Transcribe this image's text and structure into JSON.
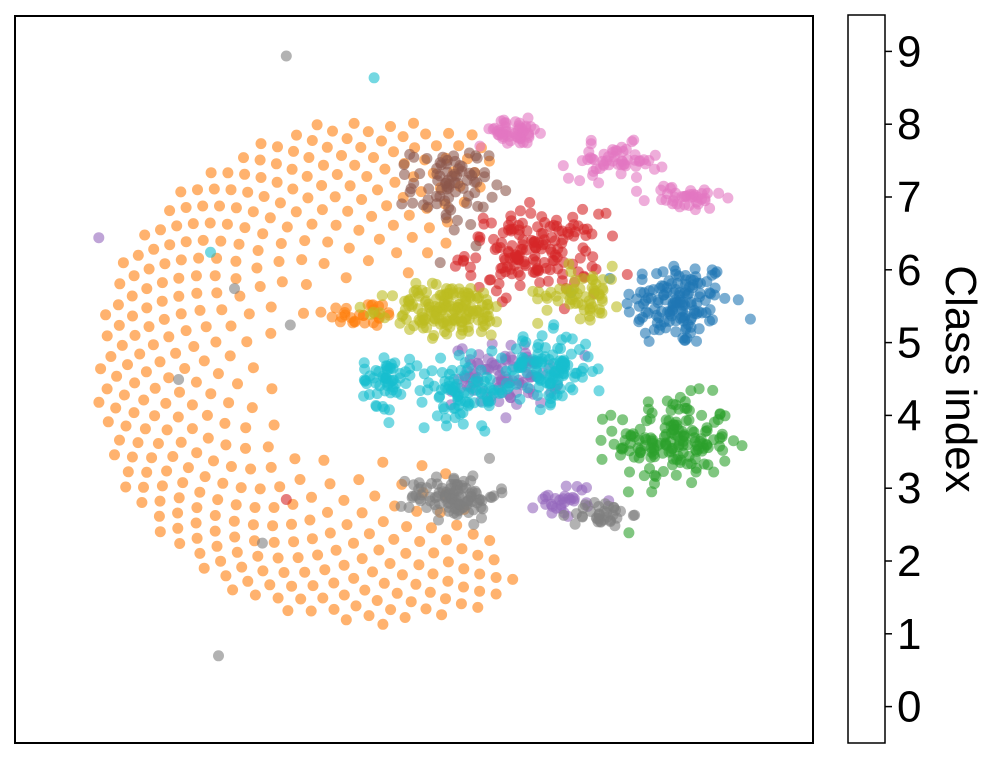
{
  "chart_data": {
    "type": "scatter",
    "title": "",
    "xlabel": "",
    "ylabel": "",
    "axis_ticks_visible": false,
    "grid": false,
    "marker_alpha": 0.6,
    "colorbar": {
      "label": "Class index",
      "ticks": [
        "0",
        "1",
        "2",
        "3",
        "4",
        "5",
        "6",
        "7",
        "8",
        "9"
      ],
      "colors": [
        "#1f77b4",
        "#ff7f0e",
        "#2ca02c",
        "#d62728",
        "#9467bd",
        "#8c564b",
        "#e377c2",
        "#7f7f7f",
        "#bcbd22",
        "#17becf"
      ]
    },
    "xlim": [
      -100,
      100
    ],
    "ylim": [
      -100,
      100
    ],
    "ring": {
      "class": 1,
      "center": [
        -10,
        2
      ],
      "radius_range": [
        22,
        92
      ],
      "angle_range_deg": [
        62,
        303
      ],
      "n_rings": 9,
      "n_points": 380,
      "outliers": [
        {
          "x": -32,
          "y": 89,
          "class": 7
        },
        {
          "x": -51,
          "y": 35,
          "class": 9
        },
        {
          "x": -79,
          "y": 39,
          "class": 4
        },
        {
          "x": -45,
          "y": 25,
          "class": 7
        },
        {
          "x": -31,
          "y": 15,
          "class": 7
        },
        {
          "x": -59,
          "y": 0,
          "class": 7
        },
        {
          "x": -32,
          "y": -33,
          "class": 3
        },
        {
          "x": -38,
          "y": -45,
          "class": 7
        },
        {
          "x": -49,
          "y": -76,
          "class": 7
        },
        {
          "x": -10,
          "y": 83,
          "class": 9
        }
      ]
    },
    "clusters": [
      {
        "class": 0,
        "center": [
          66,
          21
        ],
        "spread": [
          11,
          10
        ],
        "n": 140
      },
      {
        "class": 1,
        "center": [
          -13,
          18
        ],
        "spread": [
          8,
          3
        ],
        "n": 30
      },
      {
        "class": 2,
        "center": [
          65,
          -17
        ],
        "spread": [
          12,
          10
        ],
        "n": 160
      },
      {
        "class": 3,
        "center": [
          30,
          35
        ],
        "spread": [
          14,
          9
        ],
        "n": 160
      },
      {
        "class": 4,
        "center": [
          23,
          1
        ],
        "spread": [
          11,
          7
        ],
        "n": 95
      },
      {
        "class": 4,
        "center": [
          38,
          -33
        ],
        "spread": [
          6,
          4
        ],
        "n": 30
      },
      {
        "class": 5,
        "center": [
          9,
          53
        ],
        "spread": [
          8,
          9
        ],
        "n": 80
      },
      {
        "class": 6,
        "center": [
          25,
          68
        ],
        "spread": [
          8,
          3
        ],
        "n": 50
      },
      {
        "class": 6,
        "center": [
          50,
          60
        ],
        "spread": [
          9,
          4
        ],
        "n": 55
      },
      {
        "class": 6,
        "center": [
          68,
          50
        ],
        "spread": [
          8,
          3
        ],
        "n": 40
      },
      {
        "class": 7,
        "center": [
          10,
          -32
        ],
        "spread": [
          9,
          5
        ],
        "n": 100
      },
      {
        "class": 7,
        "center": [
          47,
          -37
        ],
        "spread": [
          6,
          3
        ],
        "n": 35
      },
      {
        "class": 8,
        "center": [
          9,
          19
        ],
        "spread": [
          12,
          6
        ],
        "n": 160
      },
      {
        "class": 8,
        "center": [
          42,
          24
        ],
        "spread": [
          9,
          6
        ],
        "n": 60
      },
      {
        "class": 9,
        "center": [
          -7,
          0
        ],
        "spread": [
          5,
          6
        ],
        "n": 55
      },
      {
        "class": 9,
        "center": [
          13,
          -3
        ],
        "spread": [
          10,
          7
        ],
        "n": 90
      },
      {
        "class": 9,
        "center": [
          34,
          3
        ],
        "spread": [
          9,
          8
        ],
        "n": 110
      }
    ]
  }
}
